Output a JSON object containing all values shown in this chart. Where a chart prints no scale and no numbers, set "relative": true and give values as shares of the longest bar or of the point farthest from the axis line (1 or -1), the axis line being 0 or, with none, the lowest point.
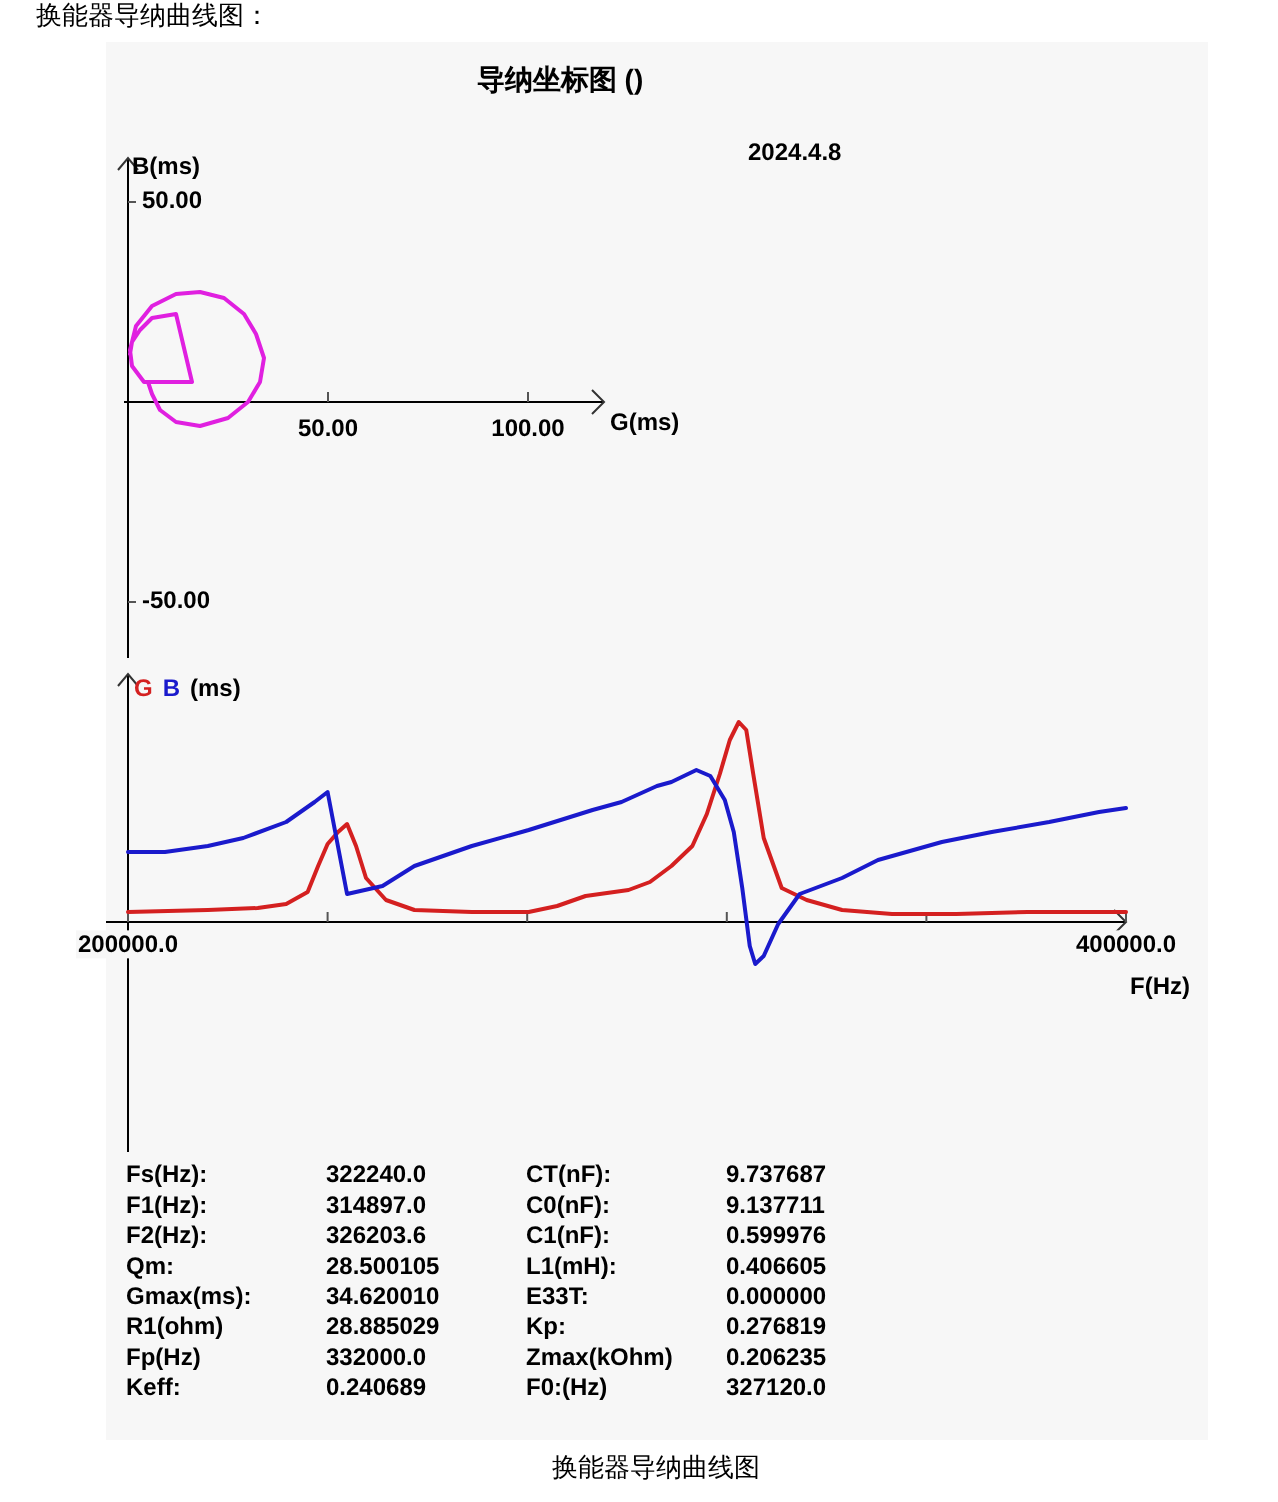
{
  "chart_data": [
    {
      "type": "line",
      "title": "导纳坐标图 ()",
      "annotations": [
        "换能器导纳曲线图：",
        "2024.4.8",
        "换能器导纳曲线图"
      ],
      "xlabel": "G(ms)",
      "ylabel": "B(ms)",
      "xlim": [
        -1,
        119
      ],
      "ylim": [
        -64,
        61
      ],
      "xticks": [
        {
          "value": 50,
          "label": "50.00"
        },
        {
          "value": 100,
          "label": "100.00"
        }
      ],
      "yticks": [
        {
          "value": 50,
          "label": "50.00"
        },
        {
          "value": -50,
          "label": "-50.00"
        }
      ],
      "grid": false,
      "series": [
        {
          "color": "#e020e0",
          "x": [
            0.5,
            1,
            3,
            6,
            12,
            16,
            4,
            1,
            0.5,
            2,
            6,
            12,
            18,
            24,
            29,
            32,
            34,
            33,
            30,
            25,
            18,
            12,
            8,
            6,
            5
          ],
          "values": [
            12,
            15,
            18,
            21,
            22,
            5,
            5,
            9,
            13,
            19,
            24,
            27,
            27.5,
            26,
            22,
            17,
            11,
            5,
            0,
            -4,
            -6,
            -5,
            -2,
            2,
            5
          ]
        }
      ]
    },
    {
      "type": "line",
      "relative": true,
      "xlabel": "F(Hz)",
      "ylabel": "(ms)",
      "xlim": [
        200000,
        400000
      ],
      "xticks": [
        {
          "value": 200000,
          "label": "200000.0"
        },
        {
          "value": 240000,
          "label": null
        },
        {
          "value": 280000,
          "label": null
        },
        {
          "value": 320000,
          "label": null
        },
        {
          "value": 360000,
          "label": null
        },
        {
          "value": 400000,
          "label": "400000.0"
        }
      ],
      "legend": "top left",
      "grid": false,
      "series": [
        {
          "name": "G",
          "color": "#d42020",
          "x": [
            200000,
            216000,
            226000,
            231700,
            236000,
            238100,
            240000,
            242100,
            243900,
            245700,
            247700,
            251700,
            257400,
            268900,
            280300,
            286000,
            291700,
            300300,
            304600,
            308900,
            313100,
            316000,
            318600,
            320600,
            322400,
            323900,
            325300,
            327400,
            331000,
            336000,
            343100,
            353100,
            366000,
            380300,
            400000
          ],
          "values": [
            0.05,
            0.06,
            0.07,
            0.09,
            0.15,
            0.28,
            0.39,
            0.45,
            0.49,
            0.38,
            0.22,
            0.11,
            0.06,
            0.05,
            0.05,
            0.08,
            0.13,
            0.16,
            0.2,
            0.28,
            0.38,
            0.54,
            0.74,
            0.91,
            1.0,
            0.96,
            0.74,
            0.42,
            0.17,
            0.11,
            0.06,
            0.04,
            0.04,
            0.05,
            0.05
          ]
        },
        {
          "name": "B",
          "color": "#1a1acc",
          "x": [
            200000,
            207400,
            216000,
            223100,
            231700,
            237400,
            240000,
            243900,
            251000,
            257400,
            268900,
            280300,
            293100,
            298900,
            306000,
            308900,
            313900,
            316700,
            319600,
            321400,
            323100,
            324600,
            325700,
            327400,
            330300,
            334600,
            343100,
            350300,
            363100,
            373100,
            384600,
            394600,
            400000
          ],
          "values": [
            0.35,
            0.35,
            0.38,
            0.42,
            0.5,
            0.6,
            0.65,
            0.14,
            0.18,
            0.28,
            0.38,
            0.46,
            0.56,
            0.6,
            0.68,
            0.7,
            0.76,
            0.73,
            0.61,
            0.45,
            0.17,
            -0.12,
            -0.21,
            -0.17,
            -0.01,
            0.14,
            0.22,
            0.31,
            0.4,
            0.45,
            0.5,
            0.55,
            0.57
          ]
        }
      ]
    },
    {
      "type": "other",
      "annotations": [
        "Fs(Hz):",
        "322240.0",
        "CT(nF):",
        "9.737687",
        "F1(Hz):",
        "314897.0",
        "C0(nF):",
        "9.137711",
        "F2(Hz):",
        "326203.6",
        "C1(nF):",
        "0.599976",
        "Qm:",
        "28.500105",
        "L1(mH):",
        "0.406605",
        "Gmax(ms):",
        "34.620010",
        "E33T:",
        "0.000000",
        "R1(ohm)",
        "28.885029",
        "Kp:",
        "0.276819",
        "Fp(Hz)",
        "332000.0",
        "Zmax(kOhm)",
        "0.206235",
        "Keff:",
        "0.240689",
        "F0:(Hz)",
        "327120.0"
      ]
    }
  ]
}
